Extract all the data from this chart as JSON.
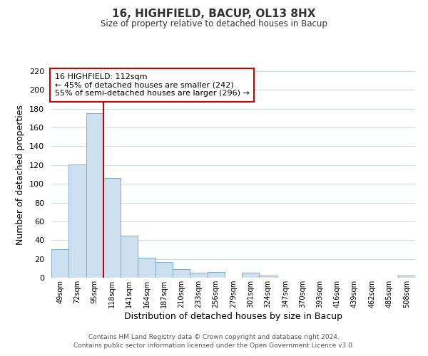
{
  "title": "16, HIGHFIELD, BACUP, OL13 8HX",
  "subtitle": "Size of property relative to detached houses in Bacup",
  "xlabel": "Distribution of detached houses by size in Bacup",
  "ylabel": "Number of detached properties",
  "bar_labels": [
    "49sqm",
    "72sqm",
    "95sqm",
    "118sqm",
    "141sqm",
    "164sqm",
    "187sqm",
    "210sqm",
    "233sqm",
    "256sqm",
    "279sqm",
    "301sqm",
    "324sqm",
    "347sqm",
    "370sqm",
    "393sqm",
    "416sqm",
    "439sqm",
    "462sqm",
    "485sqm",
    "508sqm"
  ],
  "bar_values": [
    30,
    121,
    175,
    106,
    45,
    21,
    17,
    9,
    5,
    6,
    0,
    5,
    2,
    0,
    0,
    0,
    0,
    0,
    0,
    0,
    2
  ],
  "bar_color": "#cde0f0",
  "bar_edge_color": "#7aadd4",
  "vline_x_index": 3,
  "vline_color": "#cc0000",
  "ylim": [
    0,
    220
  ],
  "yticks": [
    0,
    20,
    40,
    60,
    80,
    100,
    120,
    140,
    160,
    180,
    200,
    220
  ],
  "annotation_title": "16 HIGHFIELD: 112sqm",
  "annotation_line1": "← 45% of detached houses are smaller (242)",
  "annotation_line2": "55% of semi-detached houses are larger (296) →",
  "annotation_box_color": "#ffffff",
  "annotation_box_edge": "#cc0000",
  "footer1": "Contains HM Land Registry data © Crown copyright and database right 2024.",
  "footer2": "Contains public sector information licensed under the Open Government Licence v3.0.",
  "background_color": "#ffffff",
  "grid_color": "#d0dce8"
}
